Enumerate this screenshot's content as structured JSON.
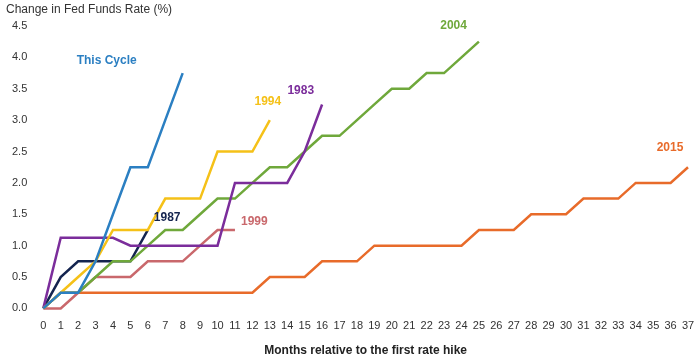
{
  "chart_data": {
    "type": "line",
    "ylabel": "Change in Fed Funds Rate (%)",
    "xlabel": "Months relative to the first rate hike",
    "x": [
      0,
      1,
      2,
      3,
      4,
      5,
      6,
      7,
      8,
      9,
      10,
      11,
      12,
      13,
      14,
      15,
      16,
      17,
      18,
      19,
      20,
      21,
      22,
      23,
      24,
      25,
      26,
      27,
      28,
      29,
      30,
      31,
      32,
      33,
      34,
      35,
      36,
      37
    ],
    "xlim": [
      0,
      37
    ],
    "xticks": [
      0,
      1,
      2,
      3,
      4,
      5,
      6,
      7,
      8,
      9,
      10,
      11,
      12,
      13,
      14,
      15,
      16,
      17,
      18,
      19,
      20,
      21,
      22,
      23,
      24,
      25,
      26,
      27,
      28,
      29,
      30,
      31,
      32,
      33,
      34,
      35,
      36,
      37
    ],
    "ylim": [
      0,
      4.5
    ],
    "yticks": [
      {
        "value": 0,
        "label": "0.0"
      },
      {
        "value": 0.5,
        "label": "0.5"
      },
      {
        "value": 1,
        "label": "1.0"
      },
      {
        "value": 1.5,
        "label": "1.5"
      },
      {
        "value": 2,
        "label": "2.0"
      },
      {
        "value": 2.5,
        "label": "2.5"
      },
      {
        "value": 3,
        "label": "3.0"
      },
      {
        "value": 3.5,
        "label": "3.5"
      },
      {
        "value": 4,
        "label": "4.0"
      },
      {
        "value": 4.5,
        "label": "4.5"
      }
    ],
    "grid": false,
    "series": [
      {
        "name": "This Cycle",
        "color": "#2b7fc2",
        "values": [
          0,
          0.25,
          0.25,
          0.75,
          1.5,
          2.25,
          2.25,
          3.0,
          3.75,
          null,
          null,
          null,
          null,
          null,
          null,
          null,
          null,
          null,
          null,
          null,
          null,
          null,
          null,
          null,
          null,
          null,
          null,
          null,
          null,
          null,
          null,
          null,
          null,
          null,
          null,
          null,
          null,
          null
        ]
      },
      {
        "name": "1994",
        "color": "#f5c118",
        "values": [
          0,
          0.25,
          0.5,
          0.75,
          1.25,
          1.25,
          1.25,
          1.75,
          1.75,
          1.75,
          2.5,
          2.5,
          2.5,
          3.0,
          null,
          null,
          null,
          null,
          null,
          null,
          null,
          null,
          null,
          null,
          null,
          null,
          null,
          null,
          null,
          null,
          null,
          null,
          null,
          null,
          null,
          null,
          null,
          null
        ]
      },
      {
        "name": "1983",
        "color": "#7b2d9b",
        "values": [
          0,
          1.125,
          1.125,
          1.125,
          1.125,
          1.0,
          1.0,
          1.0,
          1.0,
          1.0,
          1.0,
          2.0,
          2.0,
          2.0,
          2.0,
          2.5,
          3.25,
          null,
          null,
          null,
          null,
          null,
          null,
          null,
          null,
          null,
          null,
          null,
          null,
          null,
          null,
          null,
          null,
          null,
          null,
          null,
          null,
          null
        ]
      },
      {
        "name": "2004",
        "color": "#6fa83b",
        "values": [
          0,
          0.25,
          0.25,
          0.5,
          0.75,
          0.75,
          1.0,
          1.25,
          1.25,
          1.5,
          1.75,
          1.75,
          2.0,
          2.25,
          2.25,
          2.5,
          2.75,
          2.75,
          3.0,
          3.25,
          3.5,
          3.5,
          3.75,
          3.75,
          4.0,
          4.25,
          null,
          null,
          null,
          null,
          null,
          null,
          null,
          null,
          null,
          null,
          null,
          null
        ]
      },
      {
        "name": "1987",
        "color": "#14244f",
        "values": [
          0,
          0.5,
          0.75,
          0.75,
          0.75,
          0.75,
          1.25,
          null,
          null,
          null,
          null,
          null,
          null,
          null,
          null,
          null,
          null,
          null,
          null,
          null,
          null,
          null,
          null,
          null,
          null,
          null,
          null,
          null,
          null,
          null,
          null,
          null,
          null,
          null,
          null,
          null,
          null,
          null
        ]
      },
      {
        "name": "1999",
        "color": "#c9686c",
        "values": [
          0,
          0,
          0.25,
          0.5,
          0.5,
          0.5,
          0.75,
          0.75,
          0.75,
          1.0,
          1.25,
          1.25,
          null,
          null,
          null,
          null,
          null,
          null,
          null,
          null,
          null,
          null,
          null,
          null,
          null,
          null,
          null,
          null,
          null,
          null,
          null,
          null,
          null,
          null,
          null,
          null,
          null,
          null
        ]
      },
      {
        "name": "2015",
        "color": "#e86b2a",
        "values": [
          0,
          0.25,
          0.25,
          0.25,
          0.25,
          0.25,
          0.25,
          0.25,
          0.25,
          0.25,
          0.25,
          0.25,
          0.25,
          0.5,
          0.5,
          0.5,
          0.75,
          0.75,
          0.75,
          1.0,
          1.0,
          1.0,
          1.0,
          1.0,
          1.0,
          1.25,
          1.25,
          1.25,
          1.5,
          1.5,
          1.5,
          1.75,
          1.75,
          1.75,
          2.0,
          2.0,
          2.0,
          2.25
        ]
      }
    ]
  }
}
